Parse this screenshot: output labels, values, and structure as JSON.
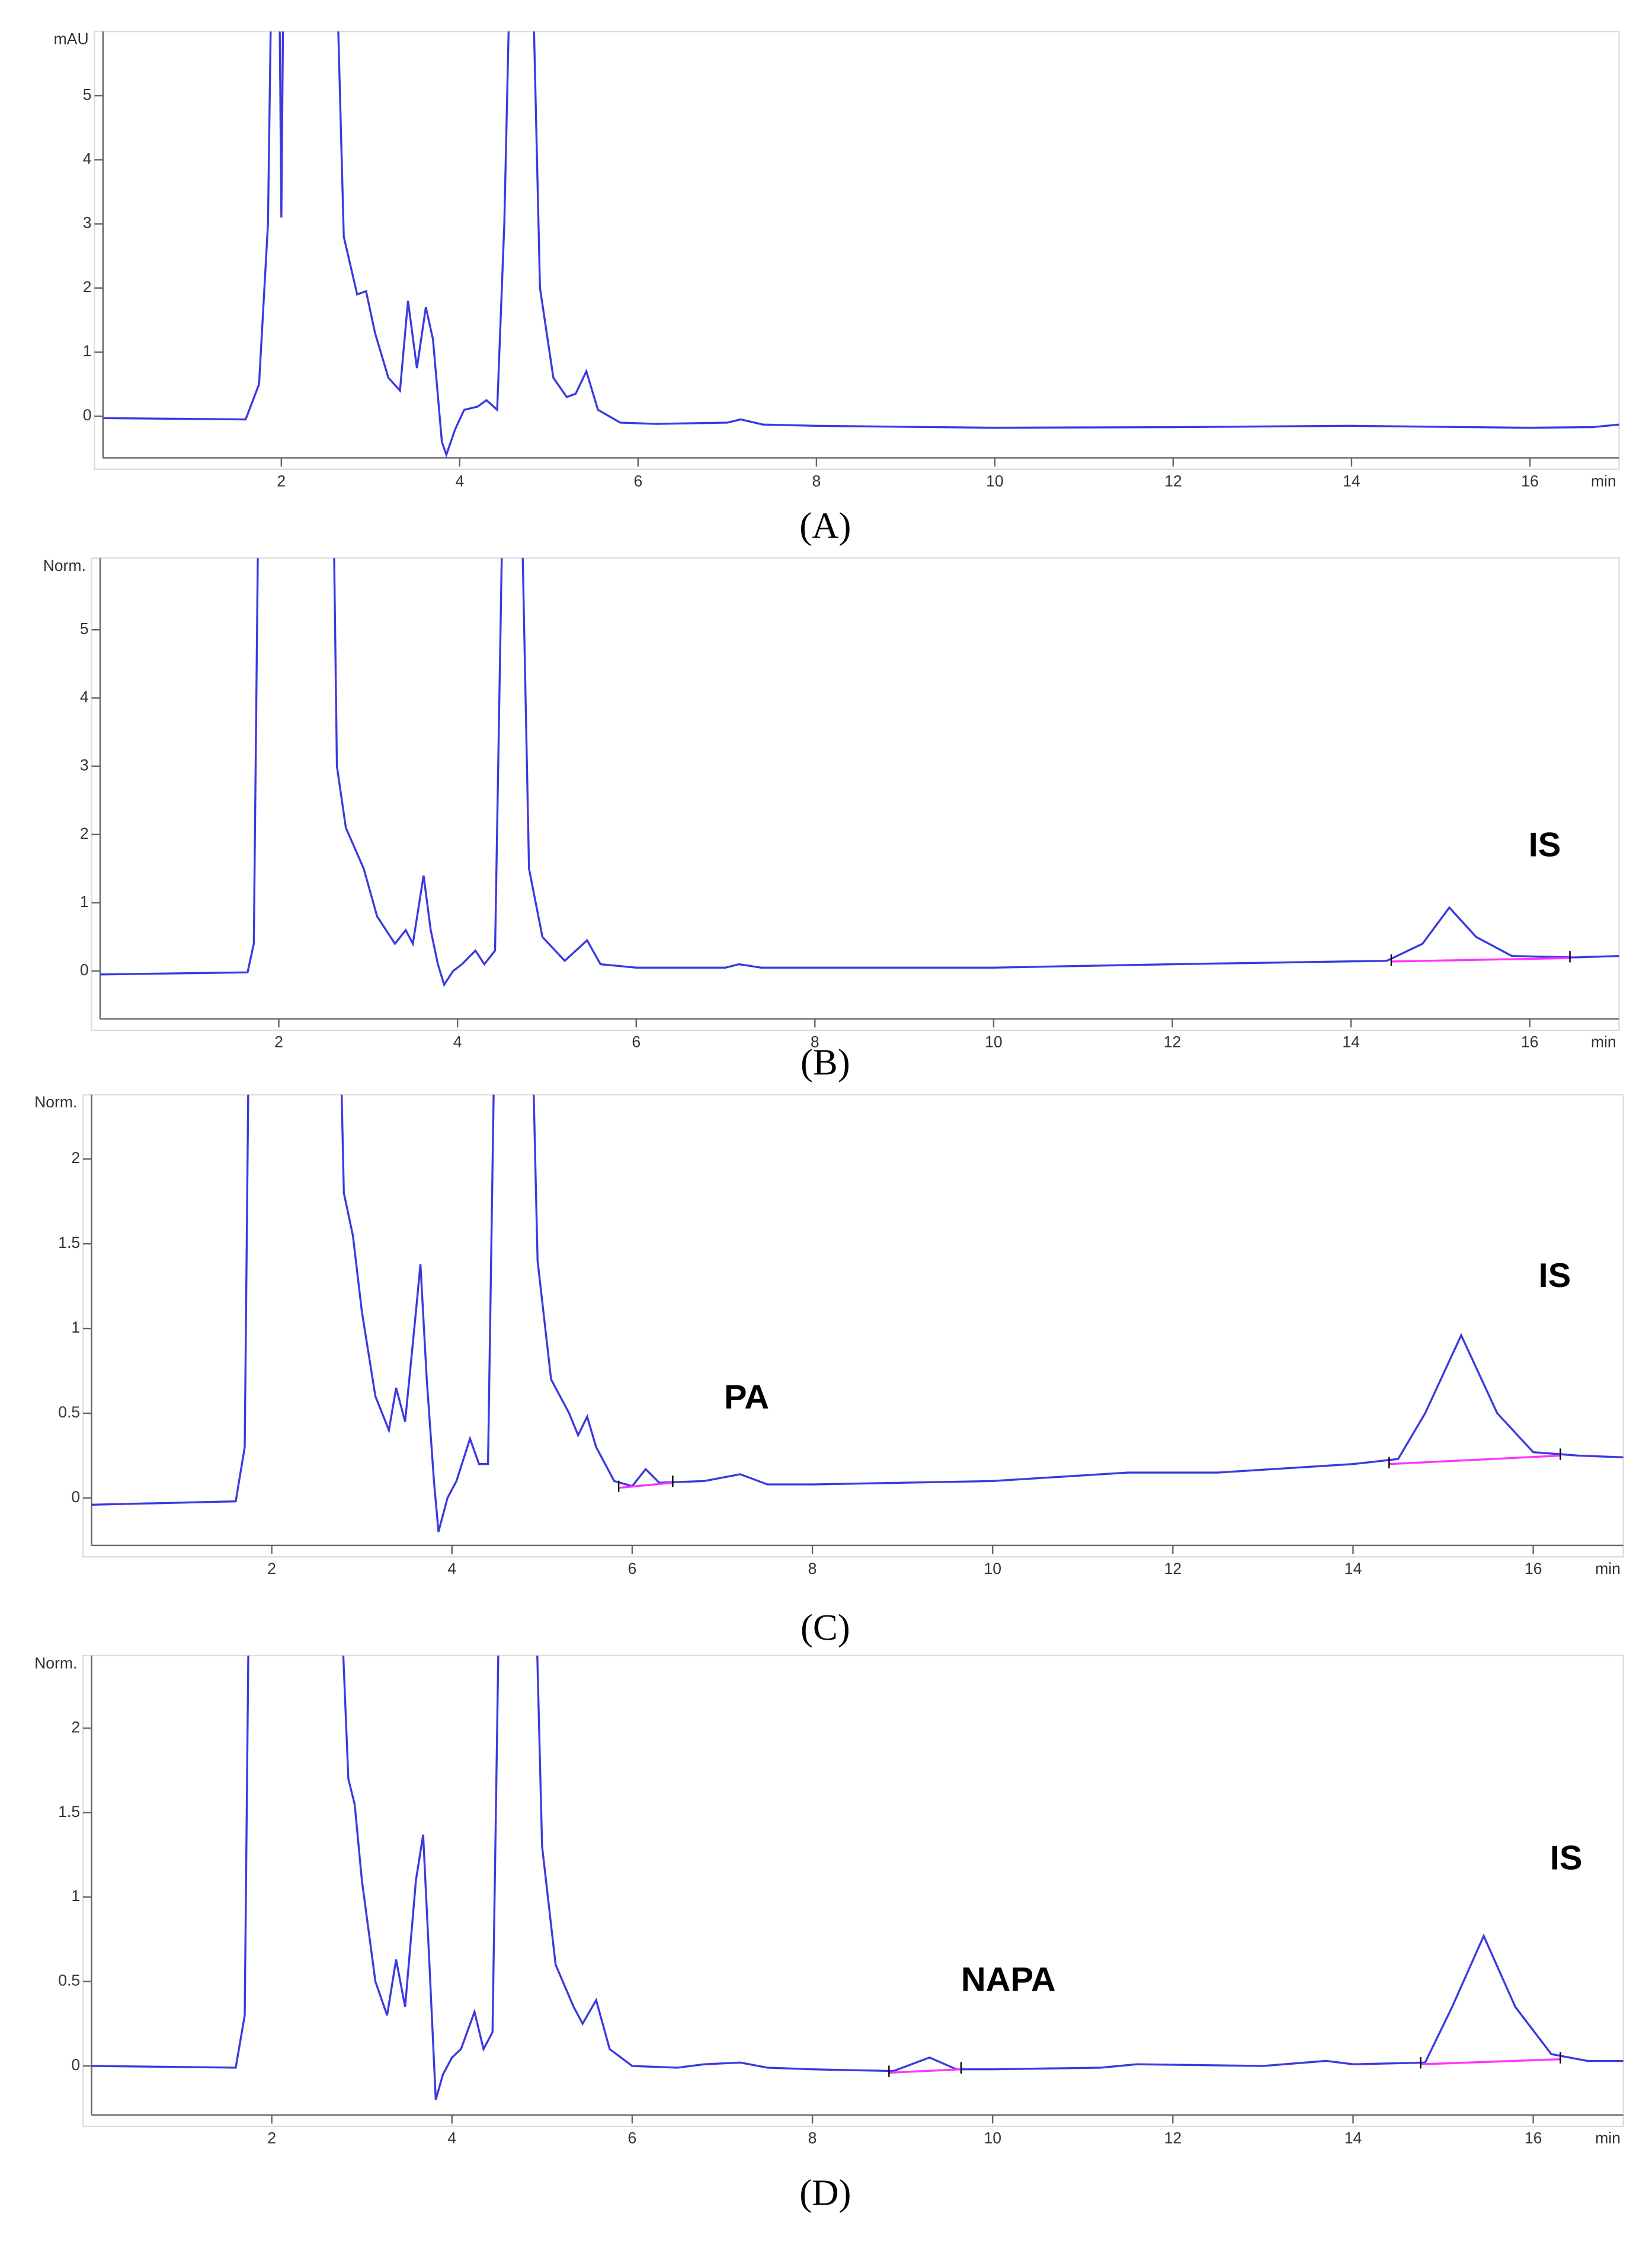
{
  "chart_data": [
    {
      "type": "line",
      "caption": "(A)",
      "ylabel": "mAU",
      "xlabel": "min",
      "color": "#3a3ae0",
      "xlim": [
        0,
        17
      ],
      "xticks": [
        2,
        4,
        6,
        8,
        10,
        12,
        14,
        16
      ],
      "ylim": [
        -0.65,
        6.0
      ],
      "yticks": [
        0,
        1,
        2,
        3,
        4,
        5
      ],
      "x": [
        0,
        1.6,
        1.75,
        1.85,
        1.9,
        1.97,
        2.0,
        2.03,
        2.6,
        2.7,
        2.85,
        2.95,
        3.05,
        3.2,
        3.33,
        3.42,
        3.52,
        3.62,
        3.7,
        3.8,
        3.85,
        3.95,
        4.05,
        4.2,
        4.3,
        4.42,
        4.5,
        4.58,
        4.8,
        4.9,
        5.05,
        5.2,
        5.3,
        5.42,
        5.55,
        5.8,
        6.2,
        7.0,
        7.15,
        7.4,
        8,
        10,
        12,
        14,
        16,
        16.7,
        17
      ],
      "values": [
        -0.03,
        -0.05,
        0.5,
        3,
        8,
        8,
        3.1,
        8,
        8,
        2.8,
        1.9,
        1.95,
        1.3,
        0.6,
        0.4,
        1.8,
        0.75,
        1.7,
        1.2,
        -0.4,
        -0.6,
        -0.2,
        0.1,
        0.15,
        0.25,
        0.1,
        3,
        8,
        8,
        2,
        0.6,
        0.3,
        0.35,
        0.7,
        0.1,
        -0.1,
        -0.12,
        -0.1,
        -0.05,
        -0.13,
        -0.15,
        -0.18,
        -0.17,
        -0.15,
        -0.18,
        -0.17,
        -0.13
      ],
      "baselines": [],
      "baseline_color": "#ff33ff",
      "annotations": []
    },
    {
      "type": "line",
      "caption": "(B)",
      "ylabel": "Norm.",
      "xlabel": "min",
      "color": "#3a3ae0",
      "xlim": [
        0,
        17
      ],
      "xticks": [
        2,
        4,
        6,
        8,
        10,
        12,
        14,
        16
      ],
      "ylim": [
        -0.7,
        6.05
      ],
      "yticks": [
        0,
        1,
        2,
        3,
        4,
        5
      ],
      "x": [
        0,
        1.65,
        1.72,
        1.78,
        2.6,
        2.65,
        2.75,
        2.85,
        2.95,
        3.1,
        3.3,
        3.42,
        3.5,
        3.62,
        3.7,
        3.78,
        3.85,
        3.95,
        4.05,
        4.2,
        4.3,
        4.42,
        4.52,
        4.7,
        4.8,
        4.95,
        5.2,
        5.45,
        5.6,
        6.0,
        7.0,
        7.15,
        7.4,
        10,
        12,
        14.4,
        14.8,
        15.1,
        15.4,
        15.8,
        16.5,
        17
      ],
      "values": [
        -0.05,
        -0.02,
        0.4,
        8,
        8,
        3,
        2.1,
        1.8,
        1.5,
        0.8,
        0.4,
        0.6,
        0.4,
        1.4,
        0.6,
        0.1,
        -0.2,
        0.0,
        0.1,
        0.3,
        0.1,
        0.3,
        8,
        8,
        1.5,
        0.5,
        0.15,
        0.45,
        0.1,
        0.05,
        0.05,
        0.1,
        0.05,
        0.05,
        0.1,
        0.15,
        0.4,
        0.93,
        0.5,
        0.22,
        0.2,
        0.22
      ],
      "baselines": [
        {
          "x": [
            14.45,
            16.45
          ],
          "values": [
            0.14,
            0.19
          ]
        }
      ],
      "baseline_color": "#ff33ff",
      "annotations": [
        "IS"
      ]
    },
    {
      "type": "line",
      "caption": "(C)",
      "ylabel": "Norm.",
      "xlabel": "min",
      "color": "#3a3ae0",
      "xlim": [
        0,
        17
      ],
      "xticks": [
        2,
        4,
        6,
        8,
        10,
        12,
        14,
        16
      ],
      "ylim": [
        -0.28,
        2.38
      ],
      "yticks": [
        0,
        0.5,
        1,
        1.5,
        2
      ],
      "x": [
        0,
        1.6,
        1.7,
        1.75,
        2.75,
        2.8,
        2.9,
        3.0,
        3.15,
        3.3,
        3.38,
        3.48,
        3.6,
        3.65,
        3.72,
        3.8,
        3.85,
        3.95,
        4.05,
        4.2,
        4.3,
        4.4,
        4.48,
        4.88,
        4.95,
        5.1,
        5.3,
        5.4,
        5.5,
        5.6,
        5.8,
        6.0,
        6.15,
        6.3,
        6.8,
        7.2,
        7.5,
        8,
        10,
        11.5,
        12.5,
        14,
        14.5,
        14.8,
        15.2,
        15.6,
        16,
        16.5,
        17
      ],
      "values": [
        -0.04,
        -0.02,
        0.3,
        3,
        3,
        1.8,
        1.55,
        1.1,
        0.6,
        0.4,
        0.65,
        0.45,
        1.1,
        1.38,
        0.7,
        0.1,
        -0.2,
        0.0,
        0.1,
        0.35,
        0.2,
        0.2,
        3,
        3,
        1.4,
        0.7,
        0.5,
        0.37,
        0.48,
        0.3,
        0.1,
        0.07,
        0.17,
        0.09,
        0.1,
        0.14,
        0.08,
        0.08,
        0.1,
        0.15,
        0.15,
        0.2,
        0.23,
        0.5,
        0.96,
        0.5,
        0.27,
        0.25,
        0.24
      ],
      "baselines": [
        {
          "x": [
            5.85,
            6.45
          ],
          "values": [
            0.06,
            0.09
          ]
        },
        {
          "x": [
            14.4,
            16.3
          ],
          "values": [
            0.2,
            0.25
          ]
        }
      ],
      "baseline_color": "#ff33ff",
      "annotations": [
        "PA",
        "IS"
      ]
    },
    {
      "type": "line",
      "caption": "(D)",
      "ylabel": "Norm.",
      "xlabel": "min",
      "color": "#3a3ae0",
      "xlim": [
        0,
        17
      ],
      "xticks": [
        2,
        4,
        6,
        8,
        10,
        12,
        14,
        16
      ],
      "ylim": [
        -0.29,
        2.43
      ],
      "yticks": [
        0,
        0.5,
        1,
        1.5,
        2
      ],
      "x": [
        0,
        1.6,
        1.7,
        1.75,
        2.75,
        2.85,
        2.92,
        3.0,
        3.15,
        3.28,
        3.38,
        3.48,
        3.6,
        3.68,
        3.75,
        3.82,
        3.9,
        4.0,
        4.1,
        4.25,
        4.35,
        4.45,
        4.53,
        4.92,
        5.0,
        5.15,
        5.35,
        5.45,
        5.6,
        5.75,
        6.0,
        6.5,
        6.8,
        7.2,
        7.5,
        8,
        8.9,
        9.3,
        9.6,
        10,
        11.2,
        11.6,
        13,
        13.7,
        14,
        14.8,
        15.1,
        15.45,
        15.8,
        16.2,
        16.6,
        17
      ],
      "values": [
        0.0,
        -0.01,
        0.3,
        3,
        3,
        1.7,
        1.55,
        1.1,
        0.5,
        0.3,
        0.63,
        0.35,
        1.1,
        1.37,
        0.6,
        -0.2,
        -0.05,
        0.05,
        0.1,
        0.32,
        0.1,
        0.2,
        3,
        3,
        1.3,
        0.6,
        0.35,
        0.25,
        0.39,
        0.1,
        0.0,
        -0.01,
        0.01,
        0.02,
        -0.01,
        -0.02,
        -0.03,
        0.05,
        -0.02,
        -0.02,
        -0.01,
        0.01,
        0.0,
        0.03,
        0.01,
        0.02,
        0.35,
        0.77,
        0.35,
        0.07,
        0.03,
        0.03
      ],
      "baselines": [
        {
          "x": [
            8.85,
            9.65
          ],
          "values": [
            -0.04,
            -0.02
          ]
        },
        {
          "x": [
            14.75,
            16.3
          ],
          "values": [
            0.01,
            0.04
          ]
        }
      ],
      "baseline_color": "#ff33ff",
      "annotations": [
        "NAPA",
        "IS"
      ]
    }
  ]
}
